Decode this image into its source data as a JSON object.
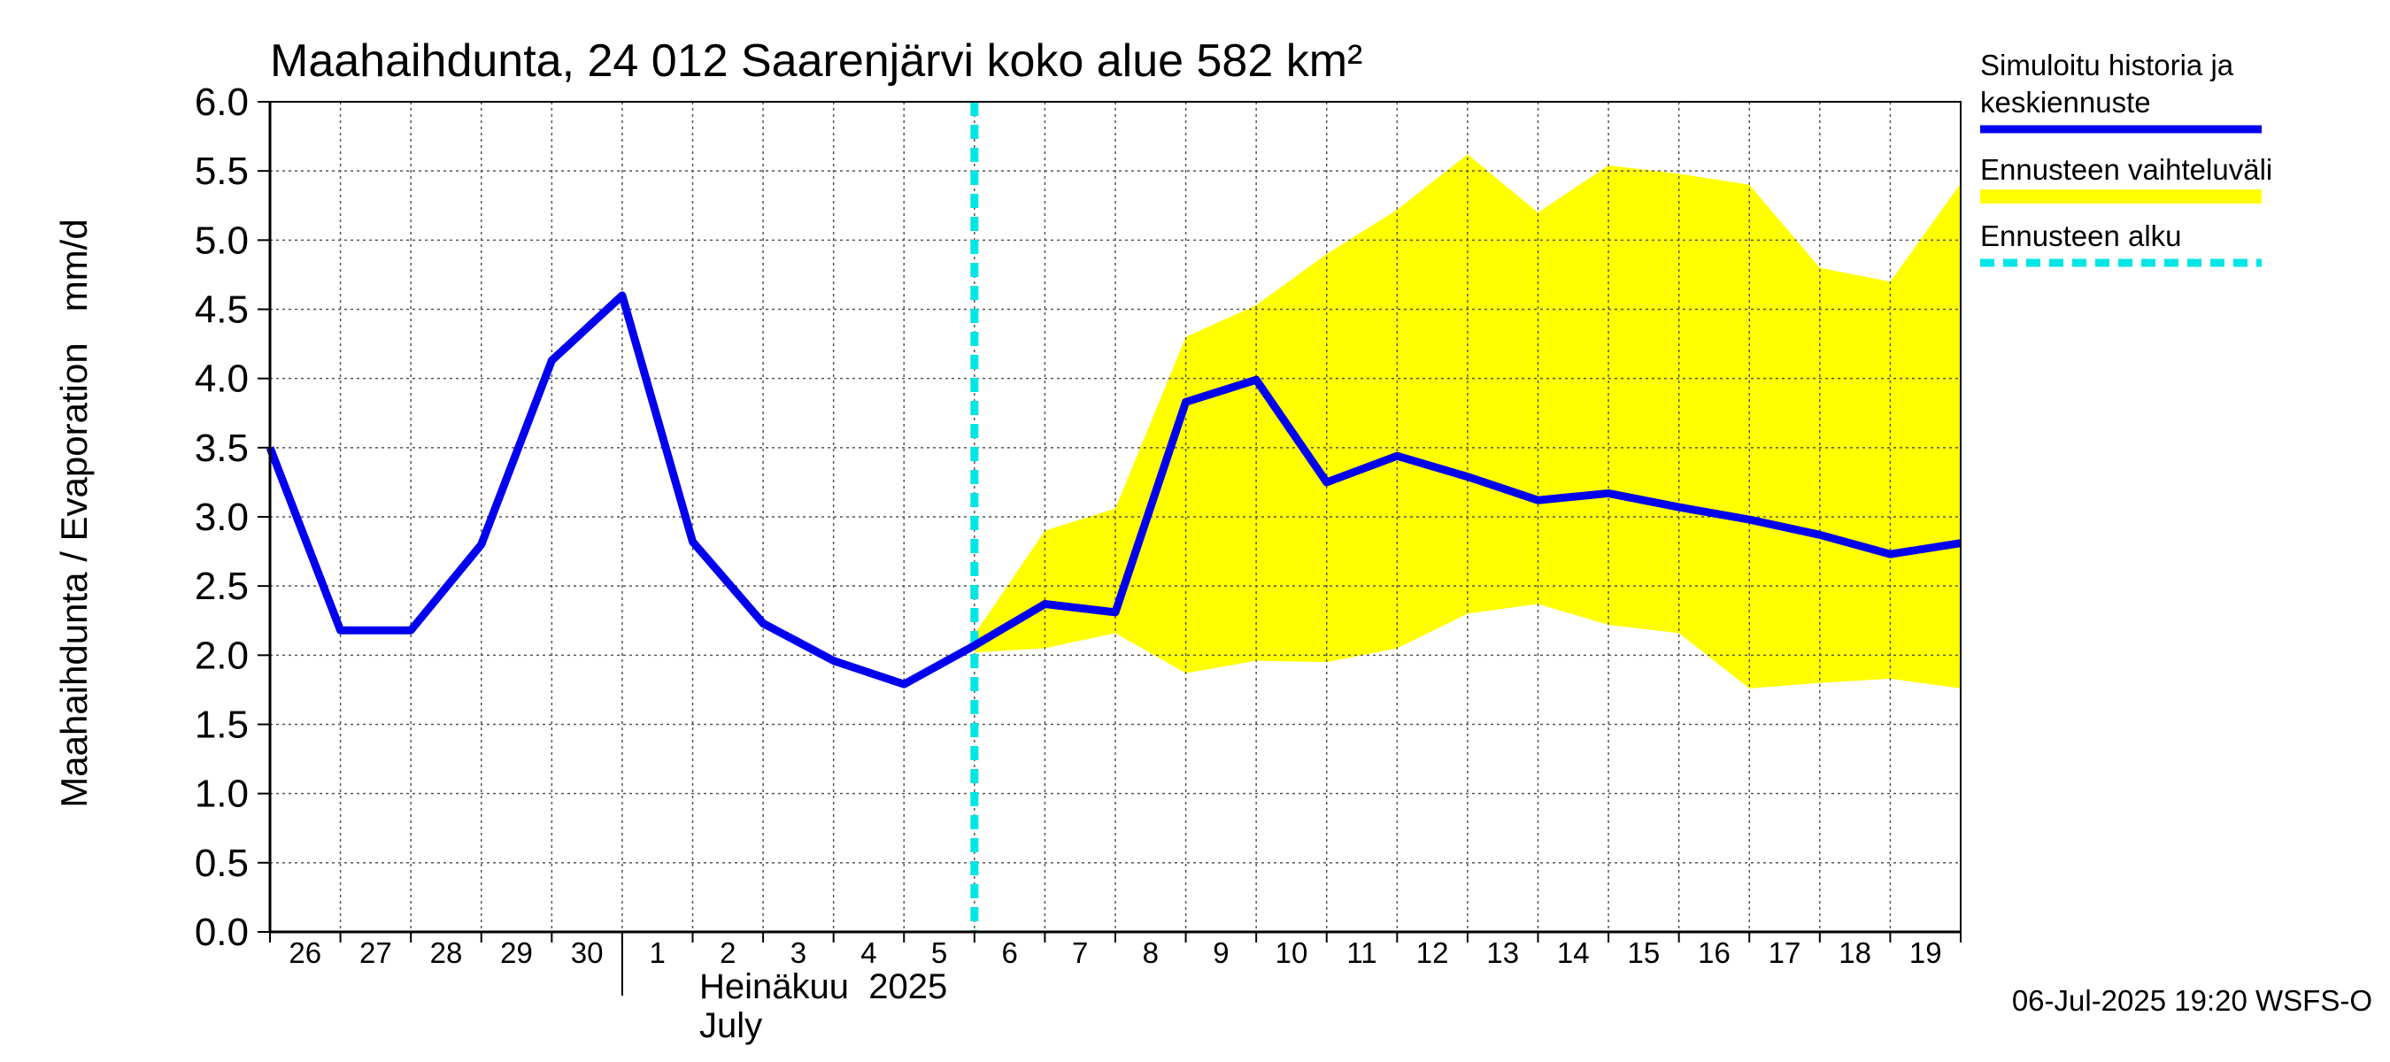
{
  "chart_data": {
    "type": "line",
    "title": "Maahaihdunta, 24 012 Saarenjärvi koko alue 582 km²",
    "ylabel": "Maahaihdunta / Evaporation   mm/d",
    "ylim": [
      0.0,
      6.0
    ],
    "yticks": [
      "0.0",
      "0.5",
      "1.0",
      "1.5",
      "2.0",
      "2.5",
      "3.0",
      "3.5",
      "4.0",
      "4.5",
      "5.0",
      "5.5",
      "6.0"
    ],
    "x_tick_labels": [
      "26",
      "27",
      "28",
      "29",
      "30",
      "1",
      "2",
      "3",
      "4",
      "5",
      "6",
      "7",
      "8",
      "9",
      "10",
      "11",
      "12",
      "13",
      "14",
      "15",
      "16",
      "17",
      "18",
      "19"
    ],
    "month_label_fi": "Heinäkuu  2025",
    "month_label_en": "July",
    "forecast_start_x": 10,
    "series": [
      {
        "name": "Simuloitu historia ja keskiennuste",
        "color": "#0000ee",
        "x": [
          0,
          1,
          2,
          3,
          4,
          5,
          6,
          7,
          8,
          9,
          10,
          11,
          12,
          13,
          14,
          15,
          16,
          17,
          18,
          19,
          20,
          21,
          22,
          23,
          24
        ],
        "values": [
          3.5,
          2.18,
          2.18,
          2.8,
          4.13,
          4.6,
          2.82,
          2.23,
          1.96,
          1.79,
          2.07,
          2.37,
          2.31,
          3.83,
          3.99,
          3.25,
          3.44,
          3.29,
          3.12,
          3.17,
          3.07,
          2.98,
          2.87,
          2.73,
          2.81
        ]
      }
    ],
    "band": {
      "name": "Ennusteen vaihteluväli",
      "color": "#ffff00",
      "x": [
        10,
        11,
        12,
        13,
        14,
        15,
        16,
        17,
        18,
        19,
        20,
        21,
        22,
        23,
        24
      ],
      "upper": [
        2.15,
        2.9,
        3.06,
        4.3,
        4.53,
        4.9,
        5.22,
        5.62,
        5.2,
        5.54,
        5.48,
        5.4,
        4.8,
        4.7,
        5.41
      ],
      "lower": [
        2.02,
        2.05,
        2.16,
        1.87,
        1.96,
        1.95,
        2.05,
        2.3,
        2.37,
        2.22,
        2.16,
        1.76,
        1.8,
        1.83,
        1.76
      ]
    },
    "legend": {
      "placement": "right",
      "items": [
        {
          "label_lines": [
            "Simuloitu historia ja",
            "keskiennuste"
          ],
          "color": "#0000ee",
          "style": "line"
        },
        {
          "label_lines": [
            "Ennusteen vaihteluväli"
          ],
          "color": "#ffff00",
          "style": "band"
        },
        {
          "label_lines": [
            "Ennusteen alku"
          ],
          "color": "#00e5e5",
          "style": "dashed"
        }
      ]
    },
    "grid": true
  },
  "footer": "06-Jul-2025 19:20 WSFS-O"
}
